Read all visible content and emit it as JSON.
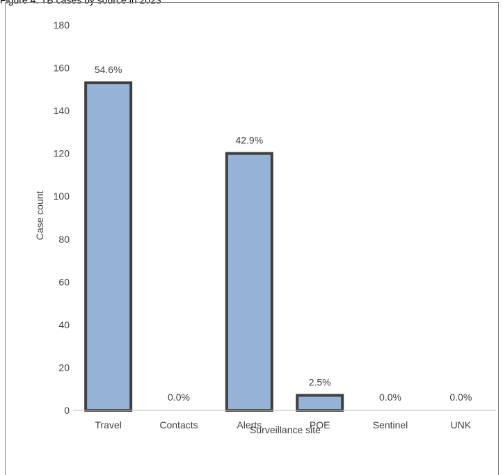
{
  "caption": "Figure 4: TB cases by source in 2023",
  "chart_data": {
    "type": "bar",
    "title": "",
    "xlabel": "Surveillance site",
    "ylabel": "Case count",
    "ylim": [
      0,
      180
    ],
    "yticks": [
      0,
      20,
      40,
      60,
      80,
      100,
      120,
      140,
      160,
      180
    ],
    "grid": false,
    "legend": "none",
    "categories": [
      "Travel",
      "Contacts",
      "Alerts",
      "POE",
      "Sentinel",
      "UNK"
    ],
    "values": [
      153,
      0,
      120,
      7,
      0,
      0
    ],
    "data_labels": [
      "54.6%",
      "0.0%",
      "42.9%",
      "2.5%",
      "0.0%",
      "0.0%"
    ],
    "colors": {
      "bar_fill": "#95b3d7",
      "bar_stroke": "#404040",
      "axis": "#bfbfbf"
    }
  }
}
